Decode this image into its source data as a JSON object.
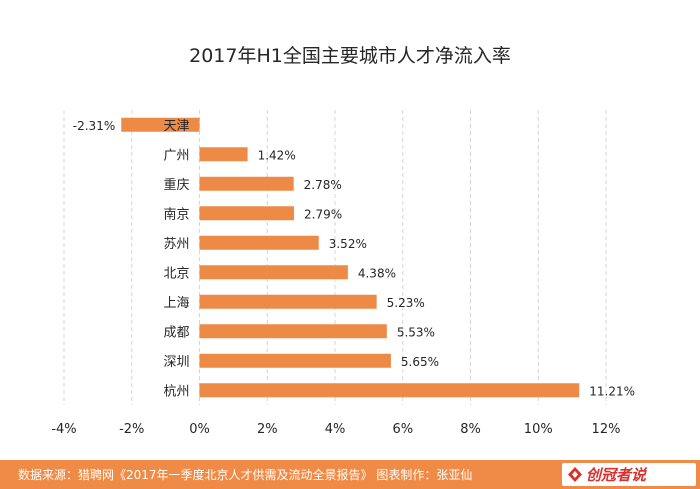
{
  "chart_data": {
    "type": "bar",
    "orientation": "horizontal",
    "title": "2017年H1全国主要城市人才净流入率",
    "categories": [
      "天津",
      "广州",
      "重庆",
      "南京",
      "苏州",
      "北京",
      "上海",
      "成都",
      "深圳",
      "杭州"
    ],
    "values": [
      -2.31,
      1.42,
      2.78,
      2.79,
      3.52,
      4.38,
      5.23,
      5.53,
      5.65,
      11.21
    ],
    "value_labels": [
      "-2.31%",
      "1.42%",
      "2.78%",
      "2.79%",
      "3.52%",
      "4.38%",
      "5.23%",
      "5.53%",
      "5.65%",
      "11.21%"
    ],
    "x_ticks": [
      -4,
      -2,
      0,
      2,
      4,
      6,
      8,
      10,
      12
    ],
    "x_tick_labels": [
      "-4%",
      "-2%",
      "0%",
      "2%",
      "4%",
      "6%",
      "8%",
      "10%",
      "12%"
    ],
    "xlim": [
      -4,
      12
    ],
    "grid": "vertical dashed",
    "legend": "none",
    "colors": {
      "bar": "#ed8a46",
      "grid": "#d6d6d6",
      "text": "#262626",
      "footer_bg": "#ef8b47"
    }
  },
  "footer": {
    "source": "数据来源：猎聘网《2017年一季度北京人才供需及流动全景报告》 图表制作：张亚仙",
    "logo_text": "创冠者说"
  }
}
